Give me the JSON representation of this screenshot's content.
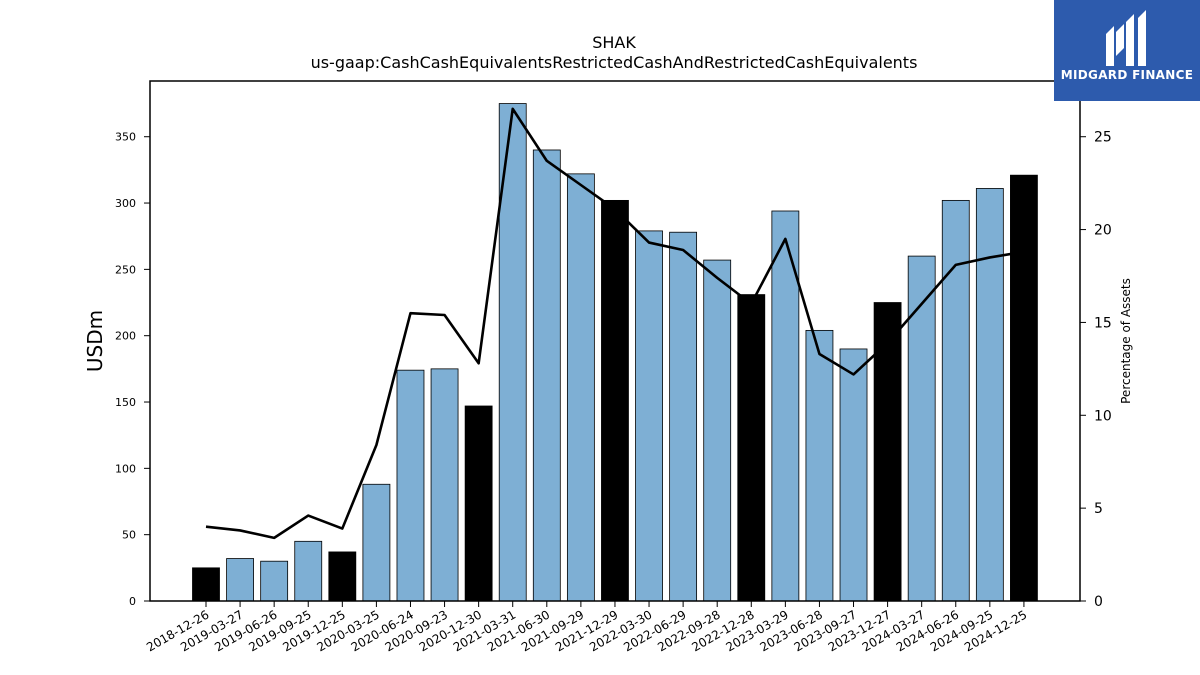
{
  "title": "SHAK",
  "subtitle": "us-gaap:CashCashEquivalentsRestrictedCashAndRestrictedCashEquivalents",
  "logo": {
    "text": "MIDGARD FINANCE",
    "color": "#2d5bad"
  },
  "chart_data": {
    "type": "bar",
    "categories": [
      "2018-12-26",
      "2019-03-27",
      "2019-06-26",
      "2019-09-25",
      "2019-12-25",
      "2020-03-25",
      "2020-06-24",
      "2020-09-23",
      "2020-12-30",
      "2021-03-31",
      "2021-06-30",
      "2021-09-29",
      "2021-12-29",
      "2022-03-30",
      "2022-06-29",
      "2022-09-28",
      "2022-12-28",
      "2023-03-29",
      "2023-06-28",
      "2023-09-27",
      "2023-12-27",
      "2024-03-27",
      "2024-06-26",
      "2024-09-25",
      "2024-12-25"
    ],
    "values": [
      25,
      32,
      30,
      45,
      37,
      88,
      174,
      175,
      147,
      375,
      340,
      322,
      302,
      279,
      278,
      257,
      231,
      294,
      204,
      190,
      225,
      260,
      302,
      311,
      321
    ],
    "highlight": [
      true,
      false,
      false,
      false,
      true,
      false,
      false,
      false,
      true,
      false,
      false,
      false,
      true,
      false,
      false,
      false,
      true,
      false,
      false,
      false,
      true,
      false,
      false,
      false,
      true
    ],
    "line_values": [
      4.0,
      3.8,
      3.4,
      4.6,
      3.9,
      8.4,
      15.5,
      15.4,
      12.8,
      26.5,
      23.7,
      22.4,
      21.1,
      19.3,
      18.9,
      17.4,
      16.0,
      19.5,
      13.3,
      12.2,
      13.9,
      16.0,
      18.1,
      18.5,
      18.8
    ],
    "ylabel": "USDm",
    "y2label": "Percentage of Assets",
    "ylim": [
      0,
      392
    ],
    "y2lim": [
      0,
      28
    ],
    "yticks": [
      0,
      50,
      100,
      150,
      200,
      250,
      300,
      350
    ],
    "y2ticks": [
      0,
      5,
      10,
      15,
      20,
      25
    ],
    "colors": {
      "bar": "#7eafd4",
      "bar_highlight": "#000000",
      "line": "#000000"
    }
  }
}
